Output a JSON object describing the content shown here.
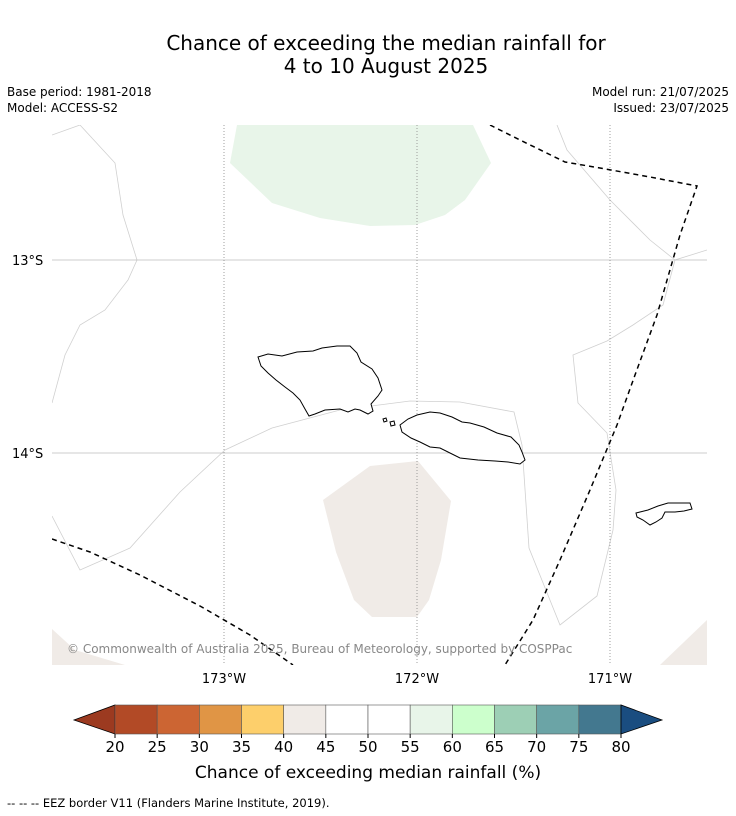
{
  "header": {
    "title_line1": "Chance of exceeding the median rainfall for",
    "title_line2": "4 to 10 August 2025",
    "base_period": "Base period: 1981-2018",
    "model": "Model: ACCESS-S2",
    "model_run": "Model run: 21/07/2025",
    "issued": "Issued: 23/07/2025"
  },
  "map": {
    "lat_labels": [
      "13°S",
      "14°S"
    ],
    "lon_labels": [
      "173°W",
      "172°W",
      "171°W"
    ],
    "copyright": "© Commonwealth of Australia 2025, Bureau of Meteorology, supported by COSPPac",
    "colors": {
      "above_55_60": "#e8f5e9",
      "below_40_45": "#f0ebe7",
      "coast": "#000000",
      "eez": "#000000"
    }
  },
  "colorbar": {
    "ticks": [
      "20",
      "25",
      "30",
      "35",
      "40",
      "45",
      "50",
      "55",
      "60",
      "65",
      "70",
      "75",
      "80"
    ],
    "under_color": "#9c3a20",
    "over_color": "#1a4d80",
    "colors": [
      "#b24a26",
      "#cc6533",
      "#e09545",
      "#fdcf6b",
      "#f0ebe7",
      "#ffffff",
      "#ffffff",
      "#e8f5e9",
      "#ccffcc",
      "#9dcfb5",
      "#6ba4a6",
      "#43788f"
    ],
    "label": "Chance of exceeding median rainfall (%)"
  },
  "footnote": "--  --  -- EEZ border V11 (Flanders Marine Institute, 2019)."
}
